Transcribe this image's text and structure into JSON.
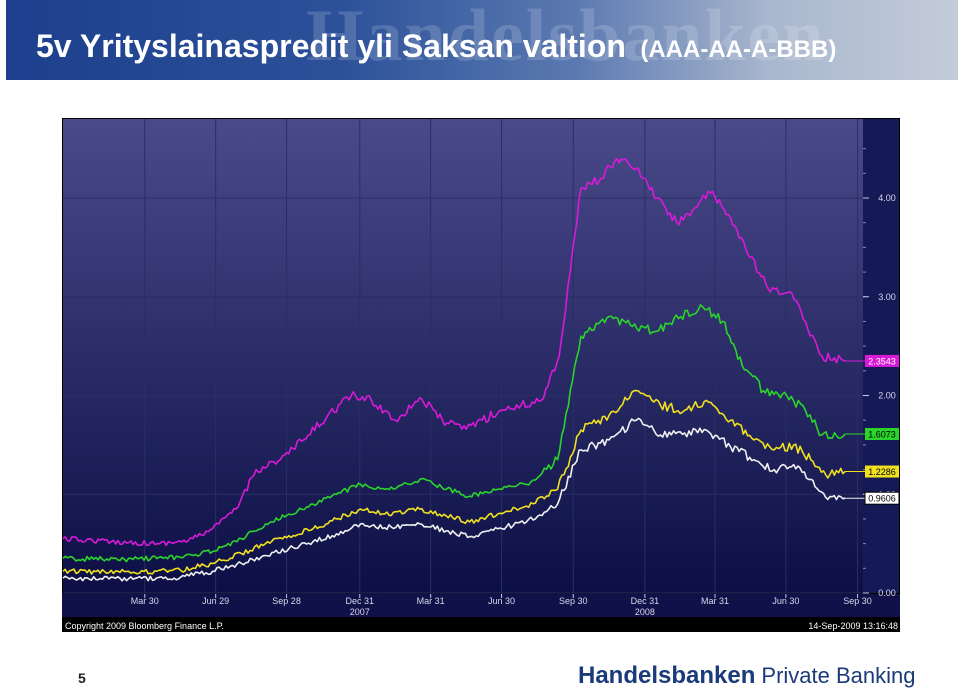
{
  "header": {
    "title": "5v Yrityslainaspredit yli Saksan valtion",
    "subtitle": "(AAA-AA-A-BBB)",
    "watermark": "Handelsbanken"
  },
  "footer": {
    "page_number": "5",
    "logo_brand": "Handelsbanken",
    "logo_suffix": "Private Banking"
  },
  "chart_data": {
    "type": "line",
    "x_ticks": [
      {
        "label": "Mar 30",
        "date": "2007-03-30"
      },
      {
        "label": "Jun 29",
        "date": "2007-06-29"
      },
      {
        "label": "Sep 28",
        "date": "2007-09-28"
      },
      {
        "label": "Dec 31",
        "date": "2007-12-31",
        "year": "2007"
      },
      {
        "label": "Mar 31",
        "date": "2008-03-31"
      },
      {
        "label": "Jun 30",
        "date": "2008-06-30"
      },
      {
        "label": "Sep 30",
        "date": "2008-09-30"
      },
      {
        "label": "Dec 31",
        "date": "2008-12-31",
        "year": "2008"
      },
      {
        "label": "Mar 31",
        "date": "2009-03-31"
      },
      {
        "label": "Jun 30",
        "date": "2009-06-30"
      },
      {
        "label": "Sep 30",
        "date": "2009-09-30"
      }
    ],
    "y_ticks": [
      "0.00",
      "1.00",
      "2.00",
      "3.00",
      "4.00"
    ],
    "ylim": [
      0,
      4.8
    ],
    "xlim": [
      "2006-12-15",
      "2009-10-07"
    ],
    "copyright": "Copyright 2009 Bloomberg Finance L.P.",
    "timestamp": "14-Sep-2009 13:16:48",
    "background": "#151a56",
    "series": [
      {
        "color": "#d81ad8",
        "last_label": "2.3543",
        "points": [
          [
            "2006-12-15",
            0.55
          ],
          [
            "2007-02-15",
            0.52
          ],
          [
            "2007-04-15",
            0.5
          ],
          [
            "2007-05-25",
            0.53
          ],
          [
            "2007-06-25",
            0.65
          ],
          [
            "2007-07-25",
            0.85
          ],
          [
            "2007-08-20",
            1.25
          ],
          [
            "2007-09-20",
            1.35
          ],
          [
            "2007-10-20",
            1.55
          ],
          [
            "2007-11-20",
            1.8
          ],
          [
            "2007-12-20",
            2.0
          ],
          [
            "2008-01-15",
            1.95
          ],
          [
            "2008-02-15",
            1.75
          ],
          [
            "2008-03-17",
            1.98
          ],
          [
            "2008-04-15",
            1.75
          ],
          [
            "2008-05-10",
            1.66
          ],
          [
            "2008-06-05",
            1.75
          ],
          [
            "2008-06-30",
            1.85
          ],
          [
            "2008-07-25",
            1.9
          ],
          [
            "2008-08-20",
            1.95
          ],
          [
            "2008-09-12",
            2.4
          ],
          [
            "2008-10-10",
            4.1
          ],
          [
            "2008-11-05",
            4.2
          ],
          [
            "2008-11-25",
            4.4
          ],
          [
            "2008-12-20",
            4.3
          ],
          [
            "2009-01-15",
            4.0
          ],
          [
            "2009-02-10",
            3.75
          ],
          [
            "2009-03-05",
            3.9
          ],
          [
            "2009-03-25",
            4.05
          ],
          [
            "2009-04-20",
            3.8
          ],
          [
            "2009-05-15",
            3.4
          ],
          [
            "2009-06-10",
            3.05
          ],
          [
            "2009-07-05",
            3.05
          ],
          [
            "2009-07-25",
            2.75
          ],
          [
            "2009-08-15",
            2.4
          ],
          [
            "2009-09-14",
            2.35
          ]
        ]
      },
      {
        "color": "#2ad42a",
        "last_label": "1.6073",
        "points": [
          [
            "2006-12-15",
            0.35
          ],
          [
            "2007-03-15",
            0.34
          ],
          [
            "2007-05-15",
            0.36
          ],
          [
            "2007-06-25",
            0.42
          ],
          [
            "2007-08-01",
            0.55
          ],
          [
            "2007-09-01",
            0.7
          ],
          [
            "2007-10-01",
            0.8
          ],
          [
            "2007-11-01",
            0.9
          ],
          [
            "2007-12-01",
            1.0
          ],
          [
            "2008-01-01",
            1.1
          ],
          [
            "2008-02-01",
            1.05
          ],
          [
            "2008-03-17",
            1.15
          ],
          [
            "2008-04-20",
            1.05
          ],
          [
            "2008-05-20",
            0.98
          ],
          [
            "2008-06-25",
            1.05
          ],
          [
            "2008-08-01",
            1.1
          ],
          [
            "2008-09-10",
            1.35
          ],
          [
            "2008-10-10",
            2.6
          ],
          [
            "2008-11-15",
            2.8
          ],
          [
            "2008-12-15",
            2.7
          ],
          [
            "2009-01-15",
            2.65
          ],
          [
            "2009-02-15",
            2.8
          ],
          [
            "2009-03-15",
            2.9
          ],
          [
            "2009-04-10",
            2.75
          ],
          [
            "2009-05-05",
            2.3
          ],
          [
            "2009-06-01",
            2.05
          ],
          [
            "2009-07-01",
            2.0
          ],
          [
            "2009-07-25",
            1.85
          ],
          [
            "2009-08-15",
            1.6
          ],
          [
            "2009-09-14",
            1.61
          ]
        ]
      },
      {
        "color": "#f0e020",
        "last_label": "1.2286",
        "points": [
          [
            "2006-12-15",
            0.22
          ],
          [
            "2007-03-15",
            0.21
          ],
          [
            "2007-05-15",
            0.23
          ],
          [
            "2007-06-25",
            0.3
          ],
          [
            "2007-08-01",
            0.4
          ],
          [
            "2007-09-01",
            0.5
          ],
          [
            "2007-10-01",
            0.58
          ],
          [
            "2007-11-01",
            0.65
          ],
          [
            "2007-12-01",
            0.75
          ],
          [
            "2008-01-01",
            0.85
          ],
          [
            "2008-02-01",
            0.8
          ],
          [
            "2008-03-17",
            0.85
          ],
          [
            "2008-04-20",
            0.78
          ],
          [
            "2008-05-20",
            0.72
          ],
          [
            "2008-06-25",
            0.8
          ],
          [
            "2008-08-01",
            0.88
          ],
          [
            "2008-09-10",
            1.05
          ],
          [
            "2008-10-10",
            1.65
          ],
          [
            "2008-11-15",
            1.8
          ],
          [
            "2008-12-20",
            2.05
          ],
          [
            "2009-01-20",
            1.9
          ],
          [
            "2009-02-20",
            1.85
          ],
          [
            "2009-03-20",
            1.95
          ],
          [
            "2009-04-20",
            1.75
          ],
          [
            "2009-05-20",
            1.55
          ],
          [
            "2009-06-15",
            1.45
          ],
          [
            "2009-07-10",
            1.5
          ],
          [
            "2009-08-01",
            1.35
          ],
          [
            "2009-08-20",
            1.2
          ],
          [
            "2009-09-14",
            1.23
          ]
        ]
      },
      {
        "color": "#f0f0f0",
        "last_label": "0.9606",
        "points": [
          [
            "2006-12-15",
            0.15
          ],
          [
            "2007-03-15",
            0.14
          ],
          [
            "2007-05-15",
            0.16
          ],
          [
            "2007-06-25",
            0.22
          ],
          [
            "2007-08-01",
            0.3
          ],
          [
            "2007-09-01",
            0.38
          ],
          [
            "2007-10-01",
            0.45
          ],
          [
            "2007-11-01",
            0.52
          ],
          [
            "2007-12-01",
            0.6
          ],
          [
            "2008-01-01",
            0.7
          ],
          [
            "2008-02-01",
            0.66
          ],
          [
            "2008-03-17",
            0.7
          ],
          [
            "2008-04-20",
            0.63
          ],
          [
            "2008-05-20",
            0.57
          ],
          [
            "2008-06-25",
            0.65
          ],
          [
            "2008-08-01",
            0.72
          ],
          [
            "2008-09-10",
            0.9
          ],
          [
            "2008-10-10",
            1.45
          ],
          [
            "2008-11-15",
            1.55
          ],
          [
            "2008-12-20",
            1.75
          ],
          [
            "2009-01-20",
            1.6
          ],
          [
            "2009-02-20",
            1.62
          ],
          [
            "2009-03-20",
            1.65
          ],
          [
            "2009-04-20",
            1.48
          ],
          [
            "2009-05-20",
            1.35
          ],
          [
            "2009-06-15",
            1.25
          ],
          [
            "2009-07-10",
            1.3
          ],
          [
            "2009-08-01",
            1.15
          ],
          [
            "2009-08-20",
            0.97
          ],
          [
            "2009-09-14",
            0.96
          ]
        ]
      }
    ]
  }
}
